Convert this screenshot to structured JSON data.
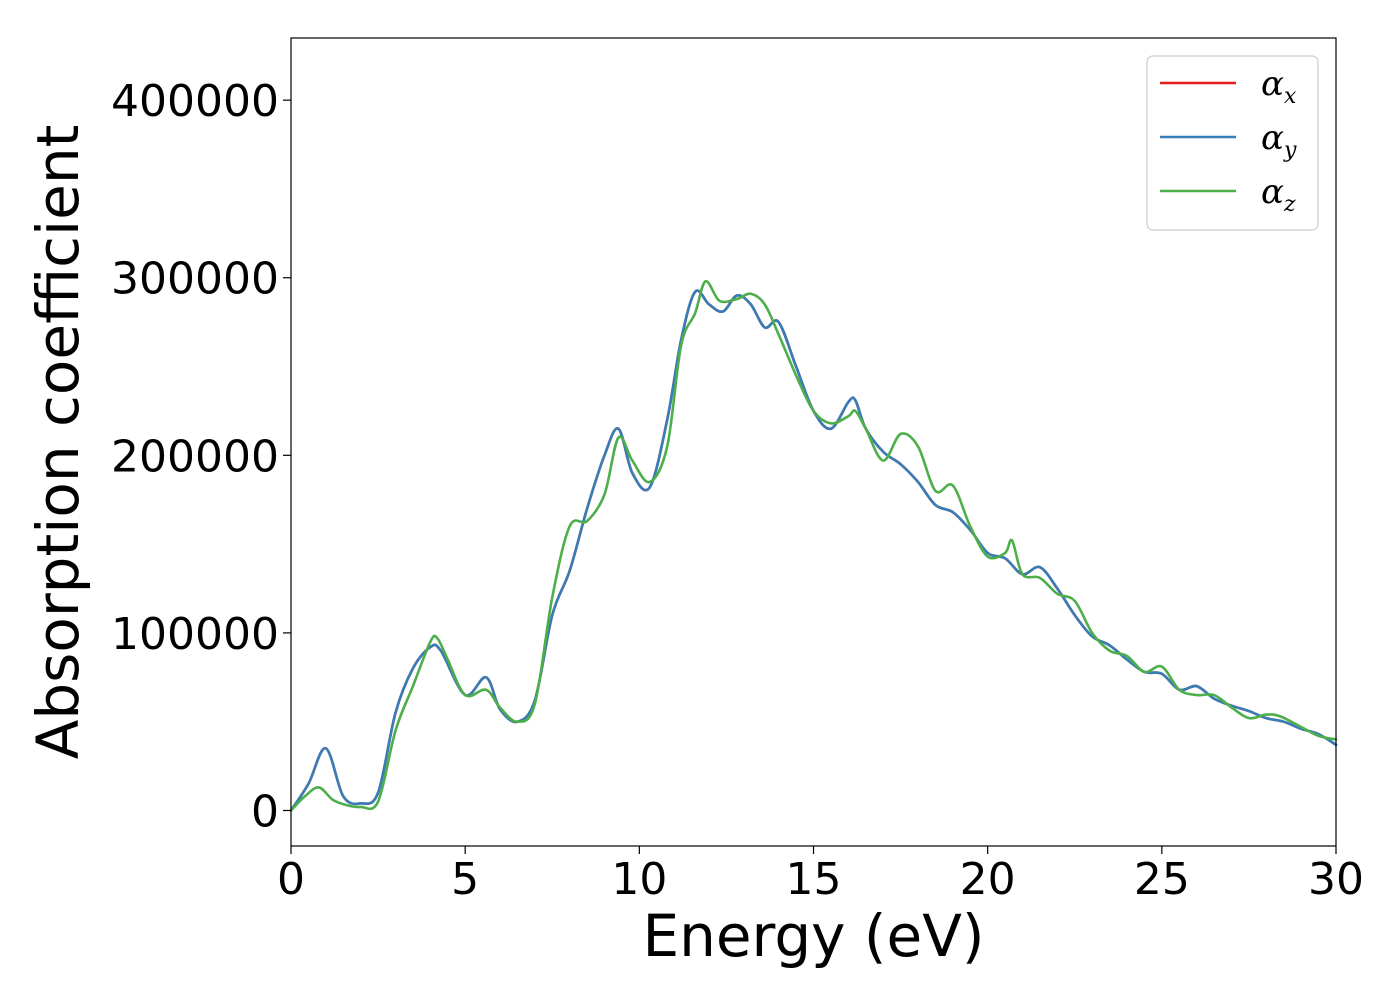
{
  "chart_data": {
    "type": "line",
    "xlabel": "Energy (eV)",
    "ylabel": "Absorption coefficient",
    "xlim": [
      0,
      30
    ],
    "ylim": [
      -20000,
      435000
    ],
    "xticks": [
      0,
      5,
      10,
      15,
      20,
      25,
      30
    ],
    "yticks": [
      0,
      100000,
      200000,
      300000,
      400000
    ],
    "grid": false,
    "legend_position": "top-right",
    "series": [
      {
        "name": "α_x",
        "symbol": "α",
        "subscript": "x",
        "color": "#e41a1c",
        "x": [
          0,
          0.5,
          1.0,
          1.5,
          2.0,
          2.5,
          3.0,
          3.5,
          4.0,
          4.3,
          5.0,
          5.6,
          6.0,
          6.5,
          7.0,
          7.5,
          8.0,
          8.5,
          9.0,
          9.4,
          9.8,
          10.3,
          10.8,
          11.2,
          11.6,
          12.0,
          12.4,
          12.8,
          13.2,
          13.6,
          14.0,
          14.5,
          15.0,
          15.5,
          16.0,
          16.2,
          16.5,
          17.0,
          17.5,
          18.0,
          18.5,
          19.0,
          19.5,
          20.0,
          20.5,
          21.0,
          21.5,
          22.0,
          22.5,
          23.0,
          23.5,
          24.0,
          24.5,
          25.0,
          25.5,
          26.0,
          26.5,
          27.0,
          27.5,
          28.0,
          28.5,
          29.0,
          29.5,
          30.0
        ],
        "y": [
          0,
          15000,
          35000,
          8000,
          4000,
          10000,
          55000,
          80000,
          92000,
          90000,
          65000,
          75000,
          57000,
          50000,
          62000,
          110000,
          135000,
          170000,
          200000,
          215000,
          190000,
          182000,
          220000,
          265000,
          292000,
          285000,
          281000,
          290000,
          285000,
          272000,
          275000,
          250000,
          225000,
          215000,
          230000,
          231000,
          215000,
          202000,
          195000,
          185000,
          172000,
          168000,
          158000,
          145000,
          142000,
          133000,
          137000,
          125000,
          110000,
          98000,
          93000,
          85000,
          78000,
          77000,
          68000,
          70000,
          63000,
          59000,
          56000,
          52000,
          50000,
          46000,
          43000,
          37000
        ]
      },
      {
        "name": "α_y",
        "symbol": "α",
        "subscript": "y",
        "color": "#377eb8",
        "x": [
          0,
          0.5,
          1.0,
          1.5,
          2.0,
          2.5,
          3.0,
          3.5,
          4.0,
          4.3,
          5.0,
          5.6,
          6.0,
          6.5,
          7.0,
          7.5,
          8.0,
          8.5,
          9.0,
          9.4,
          9.8,
          10.3,
          10.8,
          11.2,
          11.6,
          12.0,
          12.4,
          12.8,
          13.2,
          13.6,
          14.0,
          14.5,
          15.0,
          15.5,
          16.0,
          16.2,
          16.5,
          17.0,
          17.5,
          18.0,
          18.5,
          19.0,
          19.5,
          20.0,
          20.5,
          21.0,
          21.5,
          22.0,
          22.5,
          23.0,
          23.5,
          24.0,
          24.5,
          25.0,
          25.5,
          26.0,
          26.5,
          27.0,
          27.5,
          28.0,
          28.5,
          29.0,
          29.5,
          30.0
        ],
        "y": [
          0,
          15000,
          35000,
          8000,
          4000,
          10000,
          55000,
          80000,
          92000,
          90000,
          65000,
          75000,
          57000,
          50000,
          62000,
          110000,
          135000,
          170000,
          200000,
          215000,
          190000,
          182000,
          220000,
          265000,
          292000,
          285000,
          281000,
          290000,
          285000,
          272000,
          275000,
          250000,
          225000,
          215000,
          230000,
          231000,
          215000,
          202000,
          195000,
          185000,
          172000,
          168000,
          158000,
          145000,
          142000,
          133000,
          137000,
          125000,
          110000,
          98000,
          93000,
          85000,
          78000,
          77000,
          68000,
          70000,
          63000,
          59000,
          56000,
          52000,
          50000,
          46000,
          43000,
          37000
        ]
      },
      {
        "name": "α_z",
        "symbol": "α",
        "subscript": "z",
        "color": "#4daf4a",
        "x": [
          0,
          0.4,
          0.8,
          1.2,
          1.6,
          2.0,
          2.5,
          3.0,
          3.5,
          4.0,
          4.2,
          4.5,
          5.0,
          5.6,
          6.0,
          6.5,
          7.0,
          7.5,
          8.0,
          8.5,
          9.0,
          9.4,
          9.8,
          10.3,
          10.8,
          11.2,
          11.6,
          11.9,
          12.3,
          12.8,
          13.2,
          13.6,
          14.0,
          14.5,
          15.0,
          15.5,
          16.0,
          16.2,
          16.5,
          17.0,
          17.5,
          18.0,
          18.5,
          19.0,
          19.5,
          20.0,
          20.5,
          20.7,
          21.0,
          21.5,
          22.0,
          22.5,
          23.0,
          23.5,
          24.0,
          24.5,
          25.0,
          25.5,
          26.0,
          26.5,
          27.0,
          27.5,
          28.0,
          28.4,
          29.0,
          29.5,
          30.0
        ],
        "y": [
          0,
          8000,
          13000,
          6000,
          3000,
          2000,
          5000,
          45000,
          70000,
          95000,
          97000,
          85000,
          65000,
          68000,
          58000,
          50000,
          60000,
          120000,
          160000,
          163000,
          178000,
          210000,
          197000,
          185000,
          205000,
          262000,
          280000,
          298000,
          287000,
          288000,
          291000,
          285000,
          268000,
          245000,
          225000,
          218000,
          222000,
          225000,
          215000,
          197000,
          212000,
          205000,
          180000,
          183000,
          160000,
          143000,
          145000,
          152000,
          133000,
          131000,
          122000,
          118000,
          100000,
          90000,
          87000,
          78000,
          81000,
          68000,
          65000,
          65000,
          58000,
          52000,
          54000,
          53000,
          47000,
          42000,
          40000
        ]
      }
    ]
  }
}
